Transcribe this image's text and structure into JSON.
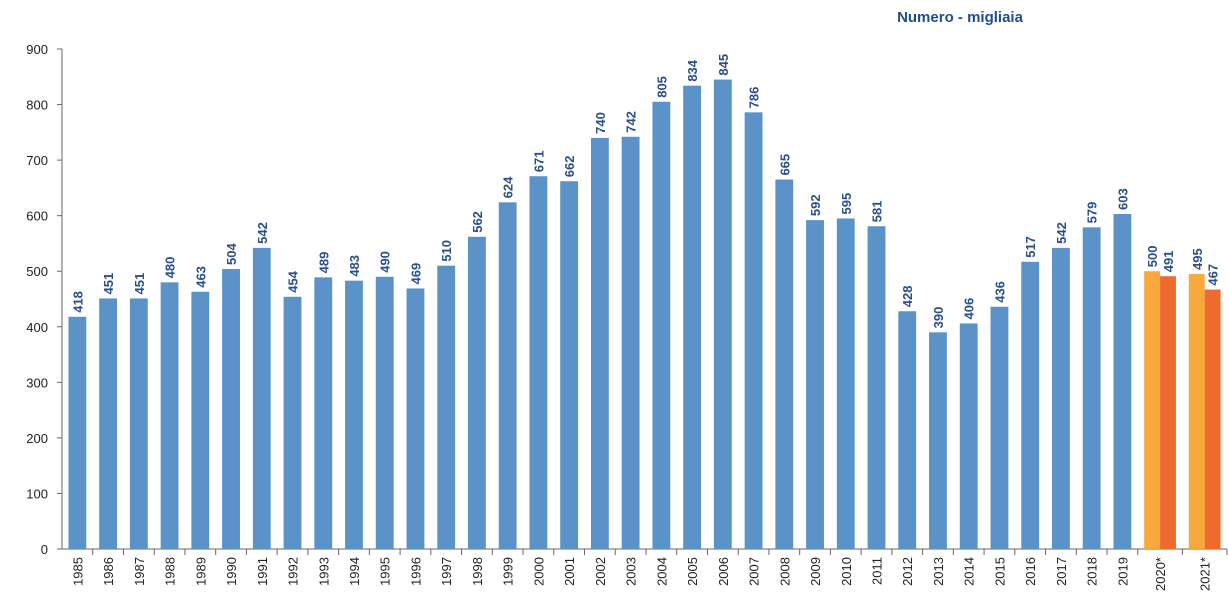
{
  "chart_data": {
    "type": "bar",
    "title": "Numero - migliaia",
    "categories": [
      "1985",
      "1986",
      "1987",
      "1988",
      "1989",
      "1990",
      "1991",
      "1992",
      "1993",
      "1994",
      "1995",
      "1996",
      "1997",
      "1998",
      "1999",
      "2000",
      "2001",
      "2002",
      "2003",
      "2004",
      "2005",
      "2006",
      "2007",
      "2008",
      "2009",
      "2010",
      "2011",
      "2012",
      "2013",
      "2014",
      "2015",
      "2016",
      "2017",
      "2018",
      "2019",
      "2020*",
      "2021*"
    ],
    "series": [
      {
        "color": "#5b93c8",
        "values": [
          418,
          451,
          451,
          480,
          463,
          504,
          542,
          454,
          489,
          483,
          490,
          469,
          510,
          562,
          624,
          671,
          662,
          740,
          742,
          805,
          834,
          845,
          786,
          665,
          592,
          595,
          581,
          428,
          390,
          406,
          436,
          517,
          542,
          579,
          603,
          null,
          null
        ]
      },
      {
        "color": "#f9a83c",
        "values": [
          null,
          null,
          null,
          null,
          null,
          null,
          null,
          null,
          null,
          null,
          null,
          null,
          null,
          null,
          null,
          null,
          null,
          null,
          null,
          null,
          null,
          null,
          null,
          null,
          null,
          null,
          null,
          null,
          null,
          null,
          null,
          null,
          null,
          null,
          null,
          500,
          495
        ]
      },
      {
        "color": "#ee6a2d",
        "values": [
          null,
          null,
          null,
          null,
          null,
          null,
          null,
          null,
          null,
          null,
          null,
          null,
          null,
          null,
          null,
          null,
          null,
          null,
          null,
          null,
          null,
          null,
          null,
          null,
          null,
          null,
          null,
          null,
          null,
          null,
          null,
          null,
          null,
          null,
          null,
          491,
          467
        ]
      }
    ],
    "ylim": [
      0,
      900
    ],
    "yticks": [
      0,
      100,
      200,
      300,
      400,
      500,
      600,
      700,
      800,
      900
    ],
    "grid": false
  }
}
